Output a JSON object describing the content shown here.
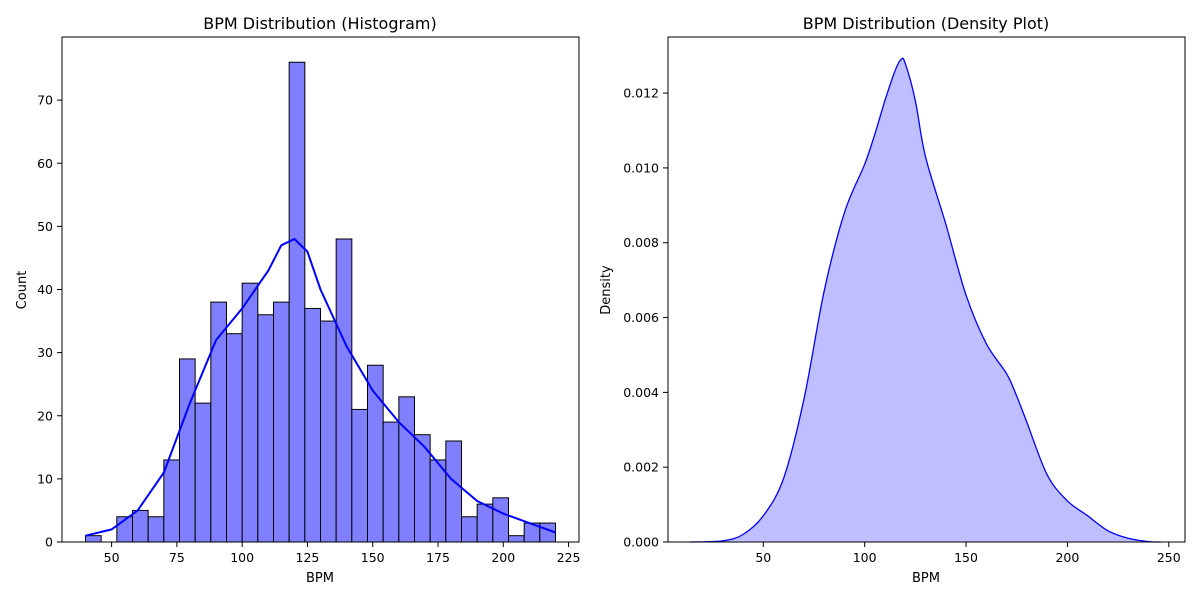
{
  "chart_data": [
    {
      "type": "bar",
      "title": "BPM Distribution (Histogram)",
      "xlabel": "BPM",
      "ylabel": "Count",
      "xlim": [
        31,
        229
      ],
      "ylim": [
        0,
        80
      ],
      "xticks": [
        50,
        75,
        100,
        125,
        150,
        175,
        200,
        225
      ],
      "yticks": [
        0,
        10,
        20,
        30,
        40,
        50,
        60,
        70
      ],
      "bins": [
        {
          "x0": 40,
          "x1": 46,
          "count": 1
        },
        {
          "x0": 46,
          "x1": 52,
          "count": 0
        },
        {
          "x0": 52,
          "x1": 58,
          "count": 4
        },
        {
          "x0": 58,
          "x1": 64,
          "count": 5
        },
        {
          "x0": 64,
          "x1": 70,
          "count": 4
        },
        {
          "x0": 70,
          "x1": 76,
          "count": 13
        },
        {
          "x0": 76,
          "x1": 82,
          "count": 29
        },
        {
          "x0": 82,
          "x1": 88,
          "count": 22
        },
        {
          "x0": 88,
          "x1": 94,
          "count": 38
        },
        {
          "x0": 94,
          "x1": 100,
          "count": 33
        },
        {
          "x0": 100,
          "x1": 106,
          "count": 41
        },
        {
          "x0": 106,
          "x1": 112,
          "count": 36
        },
        {
          "x0": 112,
          "x1": 118,
          "count": 38
        },
        {
          "x0": 118,
          "x1": 124,
          "count": 76
        },
        {
          "x0": 124,
          "x1": 130,
          "count": 37
        },
        {
          "x0": 130,
          "x1": 136,
          "count": 35
        },
        {
          "x0": 136,
          "x1": 142,
          "count": 48
        },
        {
          "x0": 142,
          "x1": 148,
          "count": 21
        },
        {
          "x0": 148,
          "x1": 154,
          "count": 28
        },
        {
          "x0": 154,
          "x1": 160,
          "count": 19
        },
        {
          "x0": 160,
          "x1": 166,
          "count": 23
        },
        {
          "x0": 166,
          "x1": 172,
          "count": 17
        },
        {
          "x0": 172,
          "x1": 178,
          "count": 13
        },
        {
          "x0": 178,
          "x1": 184,
          "count": 16
        },
        {
          "x0": 184,
          "x1": 190,
          "count": 4
        },
        {
          "x0": 190,
          "x1": 196,
          "count": 6
        },
        {
          "x0": 196,
          "x1": 202,
          "count": 7
        },
        {
          "x0": 202,
          "x1": 208,
          "count": 1
        },
        {
          "x0": 208,
          "x1": 214,
          "count": 3
        },
        {
          "x0": 214,
          "x1": 220,
          "count": 3
        }
      ],
      "kde_line": {
        "x": [
          40,
          50,
          60,
          70,
          80,
          90,
          100,
          110,
          115,
          120,
          125,
          130,
          140,
          150,
          160,
          170,
          180,
          190,
          200,
          210,
          220
        ],
        "y": [
          1,
          2,
          5,
          11,
          22,
          32,
          37,
          43,
          47,
          48,
          46,
          40,
          31,
          24,
          19,
          15,
          10,
          6.5,
          4.5,
          3,
          1.5
        ]
      },
      "bar_color": "#8080ff",
      "line_color": "#0000ff",
      "grid": false
    },
    {
      "type": "area",
      "title": "BPM Distribution (Density Plot)",
      "xlabel": "BPM",
      "ylabel": "Density",
      "xlim": [
        3,
        258
      ],
      "ylim": [
        0,
        0.0135
      ],
      "xticks": [
        50,
        100,
        150,
        200,
        250
      ],
      "ytick_values": [
        0.0,
        0.002,
        0.004,
        0.006,
        0.008,
        0.01,
        0.012
      ],
      "ytick_labels": [
        "0.000",
        "0.002",
        "0.004",
        "0.006",
        "0.008",
        "0.010",
        "0.012"
      ],
      "x": [
        14,
        30,
        40,
        50,
        60,
        70,
        80,
        90,
        100,
        105,
        110,
        115,
        118,
        120,
        125,
        130,
        140,
        150,
        160,
        170,
        175,
        180,
        190,
        200,
        210,
        220,
        230,
        240,
        246
      ],
      "y": [
        0,
        3e-05,
        0.0002,
        0.0007,
        0.0017,
        0.0038,
        0.0067,
        0.0088,
        0.0101,
        0.0109,
        0.0118,
        0.0126,
        0.0129,
        0.0128,
        0.0118,
        0.0103,
        0.0085,
        0.0066,
        0.0053,
        0.0045,
        0.0039,
        0.0032,
        0.0018,
        0.0011,
        0.0007,
        0.0003,
        0.0001,
        1e-05,
        0
      ],
      "fill_color": "#bfbfff",
      "line_color": "#0000ff",
      "grid": false
    }
  ]
}
